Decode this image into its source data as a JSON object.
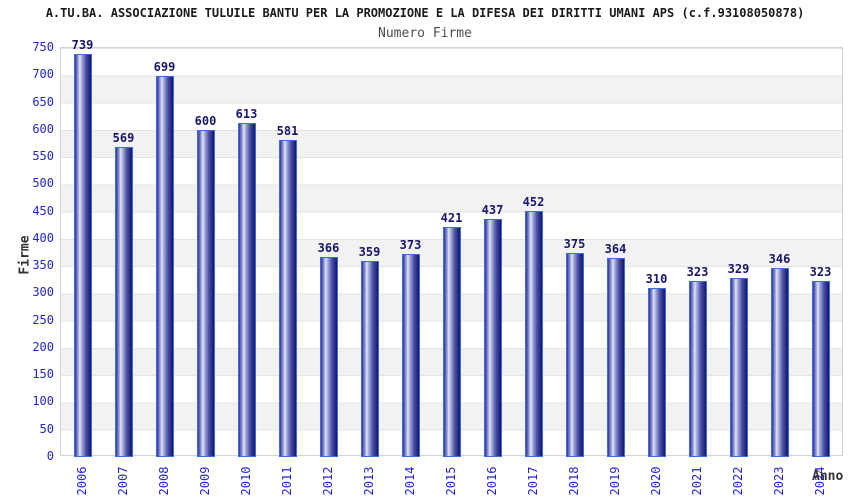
{
  "chart_data": {
    "type": "bar",
    "title": "A.TU.BA. ASSOCIAZIONE TULUILE BANTU PER LA PROMOZIONE E LA DIFESA DEI DIRITTI UMANI APS (c.f.93108050878)",
    "subtitle": "Numero Firme",
    "xlabel": "Anno",
    "ylabel": "Firme",
    "categories": [
      "2006",
      "2007",
      "2008",
      "2009",
      "2010",
      "2011",
      "2012",
      "2013",
      "2014",
      "2015",
      "2016",
      "2017",
      "2018",
      "2019",
      "2020",
      "2021",
      "2022",
      "2023",
      "2024"
    ],
    "values": [
      739,
      569,
      699,
      600,
      613,
      581,
      366,
      359,
      373,
      421,
      437,
      452,
      375,
      364,
      310,
      323,
      329,
      346,
      323
    ],
    "ylim": [
      0,
      750
    ],
    "ytick_step": 50,
    "grid": "horizontal alternating bands every 50 units, white and light gray",
    "legend": "none",
    "colors": {
      "bar_outline": "#3b6ce0",
      "bar_dark": "#15156e",
      "bar_light": "#dfe3f6",
      "tick_label": "#2525cf",
      "value_label": "#16166b",
      "band_gray": "#f2f2f2",
      "title": "#1a1a1a",
      "subtitle": "#4d4d4d",
      "axis_title": "#333333"
    }
  }
}
